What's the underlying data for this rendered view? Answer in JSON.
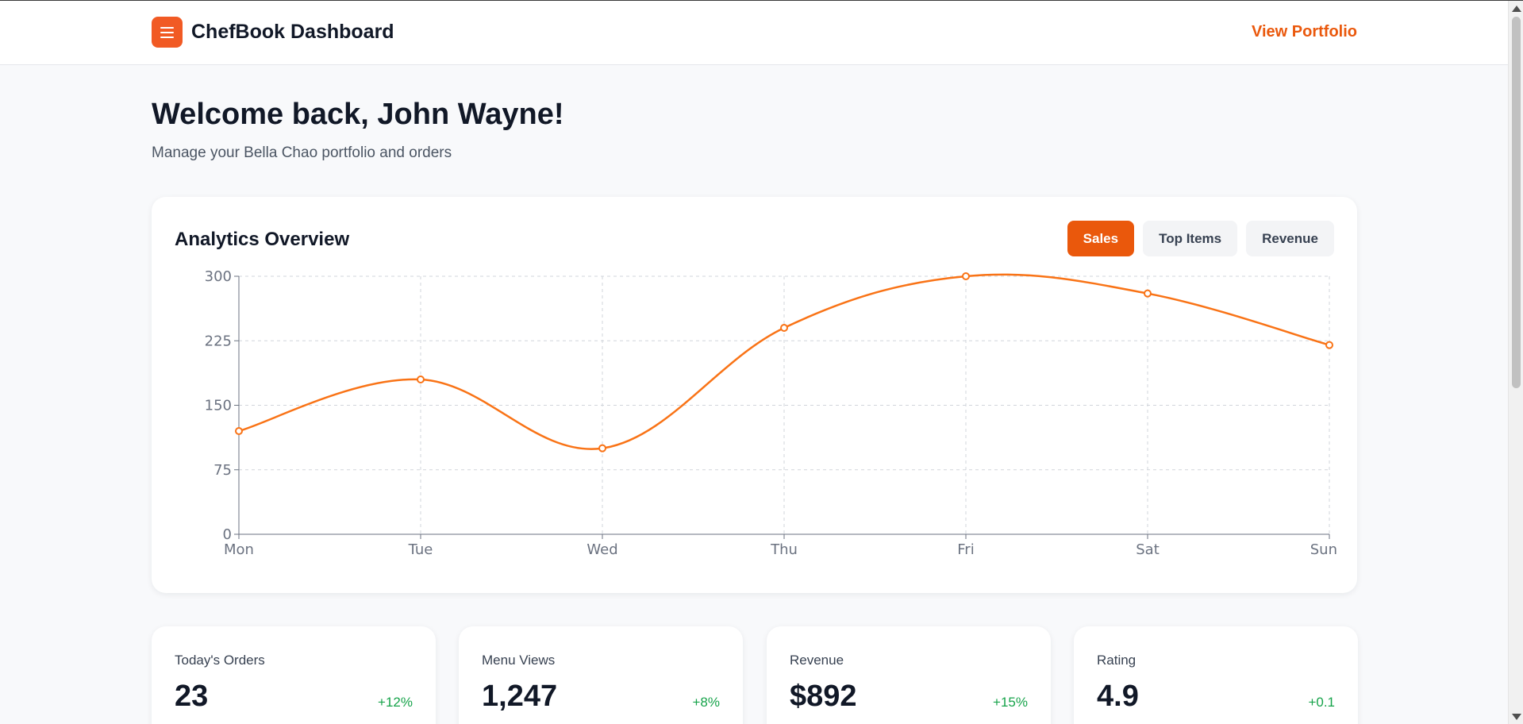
{
  "header": {
    "title": "ChefBook Dashboard",
    "logo_icon": "menu-icon",
    "nav_link": "View Portfolio"
  },
  "welcome": {
    "title": "Welcome back, John Wayne!",
    "subtitle": "Manage your Bella Chao portfolio and orders"
  },
  "analytics": {
    "title": "Analytics Overview",
    "tabs": [
      {
        "label": "Sales",
        "active": true
      },
      {
        "label": "Top Items",
        "active": false
      },
      {
        "label": "Revenue",
        "active": false
      }
    ]
  },
  "chart_data": {
    "type": "line",
    "categories": [
      "Mon",
      "Tue",
      "Wed",
      "Thu",
      "Fri",
      "Sat",
      "Sun"
    ],
    "series": [
      {
        "values": [
          120,
          180,
          100,
          240,
          300,
          280,
          220
        ]
      }
    ],
    "yticks": [
      0,
      75,
      150,
      225,
      300
    ],
    "ylim": [
      0,
      300
    ],
    "grid": true,
    "line_color": "#f97316"
  },
  "stats": [
    {
      "label": "Today's Orders",
      "value": "23",
      "change": "+12%"
    },
    {
      "label": "Menu Views",
      "value": "1,247",
      "change": "+8%"
    },
    {
      "label": "Revenue",
      "value": "$892",
      "change": "+15%"
    },
    {
      "label": "Rating",
      "value": "4.9",
      "change": "+0.1"
    }
  ],
  "colors": {
    "accent": "#ea580c",
    "positive": "#16a34a"
  }
}
